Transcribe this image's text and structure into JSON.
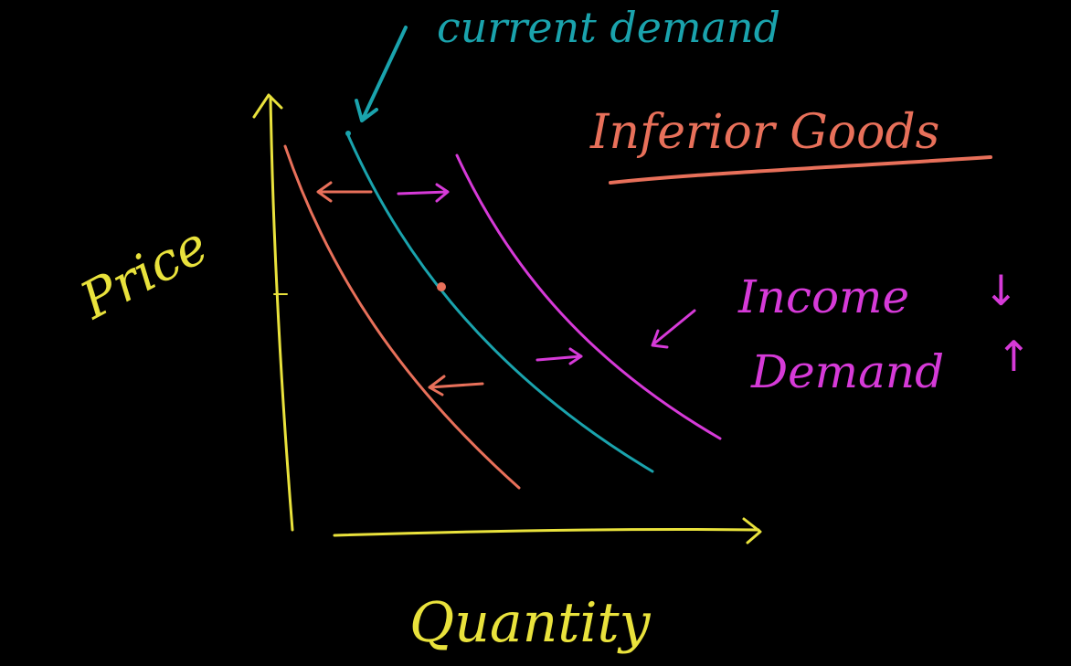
{
  "title": "Inferior Goods",
  "annotations": {
    "current_demand": "current demand",
    "income_change": "Income",
    "income_arrow": "↓",
    "demand_change": "Demand",
    "demand_arrow": "↑"
  },
  "axes": {
    "y_label": "Price",
    "x_label": "Quantity"
  },
  "colors": {
    "background": "#000000",
    "axes": "#e9e23c",
    "current_demand": "#1aa3ad",
    "shifted_left": "#e8705a",
    "shifted_right": "#d63ad8"
  },
  "curves": [
    {
      "name": "current demand",
      "role": "current"
    },
    {
      "name": "",
      "role": "left-shift"
    },
    {
      "name": "",
      "role": "right-shift"
    }
  ]
}
